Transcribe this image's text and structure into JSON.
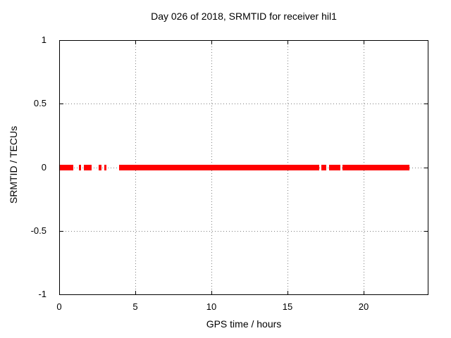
{
  "chart_data": {
    "type": "scatter",
    "title": "Day 026 of 2018, SRMTID for receiver hil1",
    "xlabel": "GPS time / hours",
    "ylabel": "SRMTID / TECUs",
    "xlim": [
      0,
      24.2
    ],
    "ylim": [
      -1,
      1
    ],
    "x_ticks": [
      0,
      5,
      10,
      15,
      20
    ],
    "y_ticks": [
      1,
      0.5,
      0,
      -0.5,
      -1
    ],
    "grid": {
      "style": "dotted",
      "color": "#7f7f7f",
      "x_lines": [
        5,
        10,
        15,
        20
      ],
      "y_lines": [
        0.5,
        0,
        -0.5
      ]
    },
    "legend": "none",
    "series": [
      {
        "name": "SRMTID",
        "marker": "square",
        "color": "#ff0000",
        "y_value": 0,
        "x_segments_hours": [
          [
            0.05,
            0.95
          ],
          [
            1.3,
            1.45
          ],
          [
            1.6,
            2.1
          ],
          [
            2.6,
            2.8
          ],
          [
            2.95,
            3.1
          ],
          [
            3.95,
            17.07
          ],
          [
            17.23,
            17.54
          ],
          [
            17.72,
            18.46
          ],
          [
            18.58,
            22.96
          ]
        ]
      }
    ]
  },
  "colors": {
    "background": "#ffffff",
    "frame": "#000000",
    "text": "#000000",
    "grid": "#7f7f7f",
    "series": "#ff0000"
  }
}
